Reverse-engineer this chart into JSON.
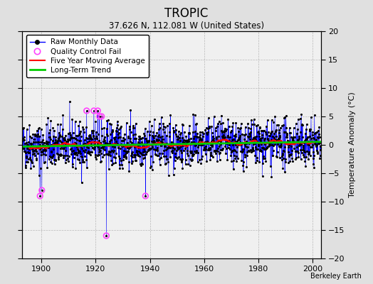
{
  "title": "TROPIC",
  "subtitle": "37.626 N, 112.081 W (United States)",
  "ylabel": "Temperature Anomaly (°C)",
  "credit": "Berkeley Earth",
  "year_start": 1893,
  "year_end": 2003,
  "xlim_start": 1893,
  "xlim_end": 2003,
  "ylim": [
    -20,
    20
  ],
  "yticks": [
    -20,
    -15,
    -10,
    -5,
    0,
    5,
    10,
    15,
    20
  ],
  "xticks": [
    1900,
    1920,
    1940,
    1960,
    1980,
    2000
  ],
  "raw_color": "#0000ff",
  "qc_color": "#ff44ff",
  "moving_avg_color": "#ff0000",
  "trend_color": "#00cc00",
  "background_color": "#e0e0e0",
  "plot_bg_color": "#f0f0f0",
  "seed": 42,
  "noise_scale": 2.0,
  "qc_fail_years": [
    1899,
    1900,
    1916,
    1919,
    1920,
    1921,
    1922,
    1923,
    1938
  ],
  "qc_fail_months": [
    6,
    2,
    8,
    4,
    9,
    5,
    2,
    11,
    4
  ],
  "qc_fail_values": [
    -9,
    -8,
    6,
    6,
    6,
    5,
    5,
    -16,
    -9
  ]
}
